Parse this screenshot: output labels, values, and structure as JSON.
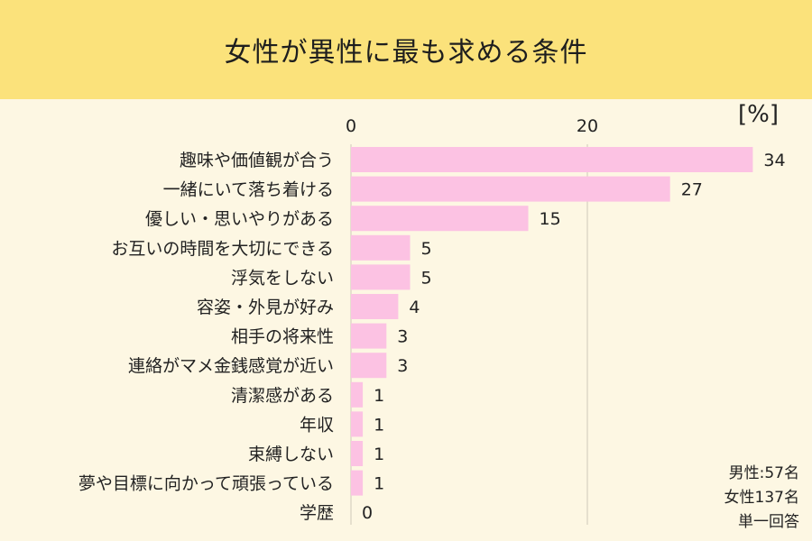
{
  "title": "女性が異性に最も求める条件",
  "unit": "[%]",
  "notes": [
    "男性:57名",
    "女性137名",
    "単一回答"
  ],
  "colors": {
    "background": "#fdf7e3",
    "title_band": "#fbe27b",
    "bar": "#fcc2e3",
    "grid": "#cfcab8"
  },
  "chart_data": {
    "type": "bar",
    "orientation": "horizontal",
    "categories": [
      "趣味や価値観が合う",
      "一緒にいて落ち着ける",
      "優しい・思いやりがある",
      "お互いの時間を大切にできる",
      "浮気をしない",
      "容姿・外見が好み",
      "相手の将来性",
      "連絡がマメ金銭感覚が近い",
      "清潔感がある",
      "年収",
      "束縛しない",
      "夢や目標に向かって頑張っている",
      "学歴"
    ],
    "values": [
      34,
      27,
      15,
      5,
      5,
      4,
      3,
      3,
      1,
      1,
      1,
      1,
      0
    ],
    "xlim": [
      0,
      34
    ],
    "xticks": [
      0,
      20
    ],
    "grid": true,
    "data_labels": true
  }
}
